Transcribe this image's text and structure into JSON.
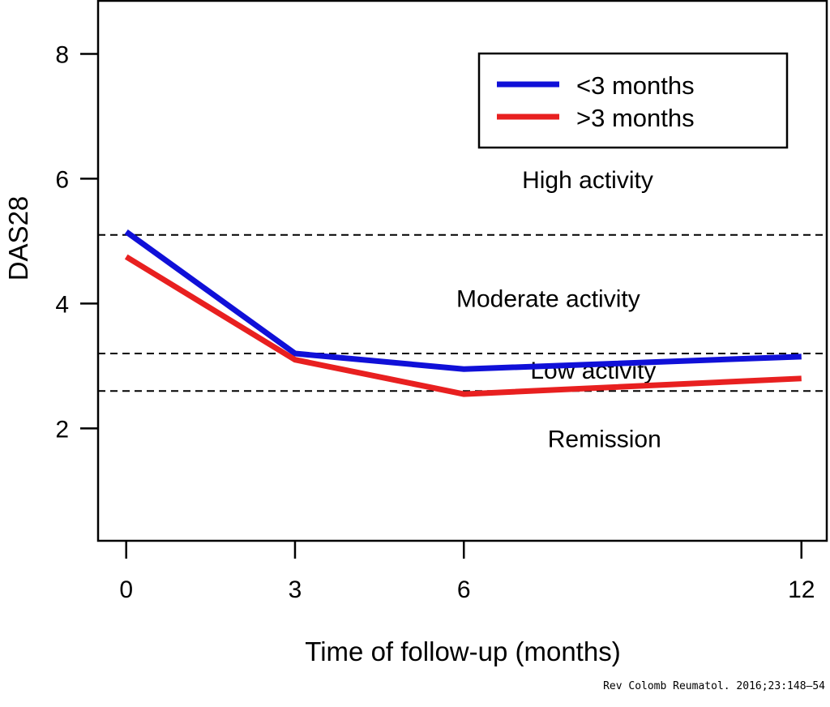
{
  "chart_data": {
    "type": "line",
    "title": "",
    "xlabel": "Time of follow-up (months)",
    "ylabel": "DAS28",
    "x": [
      0,
      3,
      6,
      12
    ],
    "x_ticks": [
      0,
      3,
      6,
      12
    ],
    "y_ticks": [
      2,
      4,
      6,
      8
    ],
    "xlim": [
      -0.5,
      12.45
    ],
    "ylim": [
      0.2,
      8.85
    ],
    "grid": false,
    "legend_position": "top-right",
    "series": [
      {
        "name": "<3 months",
        "color": "#1010d8",
        "values": [
          5.15,
          3.2,
          2.95,
          3.15
        ]
      },
      {
        "name": ">3 months",
        "color": "#e82020",
        "values": [
          4.75,
          3.1,
          2.55,
          2.8
        ]
      }
    ],
    "thresholds": [
      5.1,
      3.2,
      2.6
    ],
    "annotations": [
      {
        "text": "High activity",
        "x": 8.2,
        "y": 5.85
      },
      {
        "text": "Moderate activity",
        "x": 7.5,
        "y": 3.95
      },
      {
        "text": "Low activity",
        "x": 8.3,
        "y": 2.8
      },
      {
        "text": "Remission",
        "x": 8.5,
        "y": 1.7
      }
    ]
  },
  "source": "Rev Colomb Reumatol. 2016;23:148–54"
}
